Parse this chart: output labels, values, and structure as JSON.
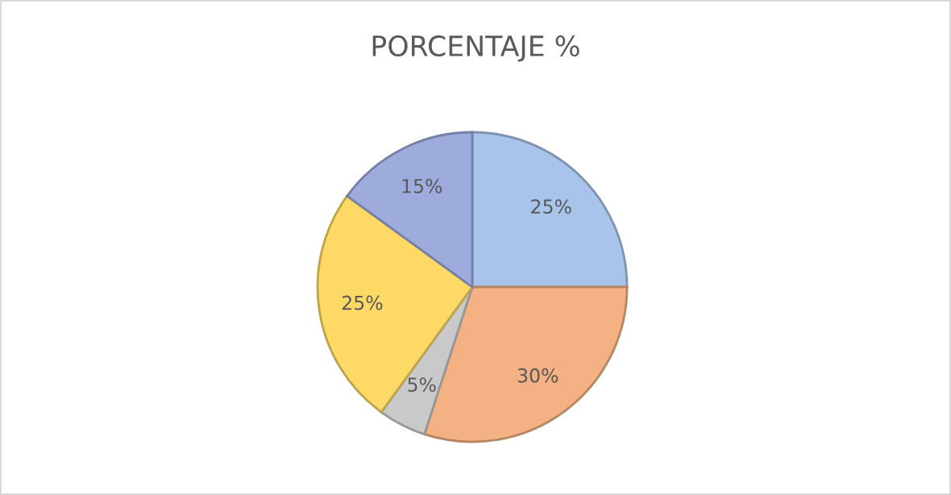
{
  "chart_data": {
    "type": "pie",
    "title": "PORCENTAJE %",
    "categories": [
      null,
      null,
      null,
      null,
      null
    ],
    "values": [
      25,
      30,
      5,
      25,
      15
    ],
    "colors": [
      "#a9c4eb",
      "#f4b183",
      "#c9c9c9",
      "#ffd966",
      "#9dabdd"
    ],
    "value_labels": [
      "25%",
      "30%",
      "5%",
      "25%",
      "15%"
    ]
  }
}
